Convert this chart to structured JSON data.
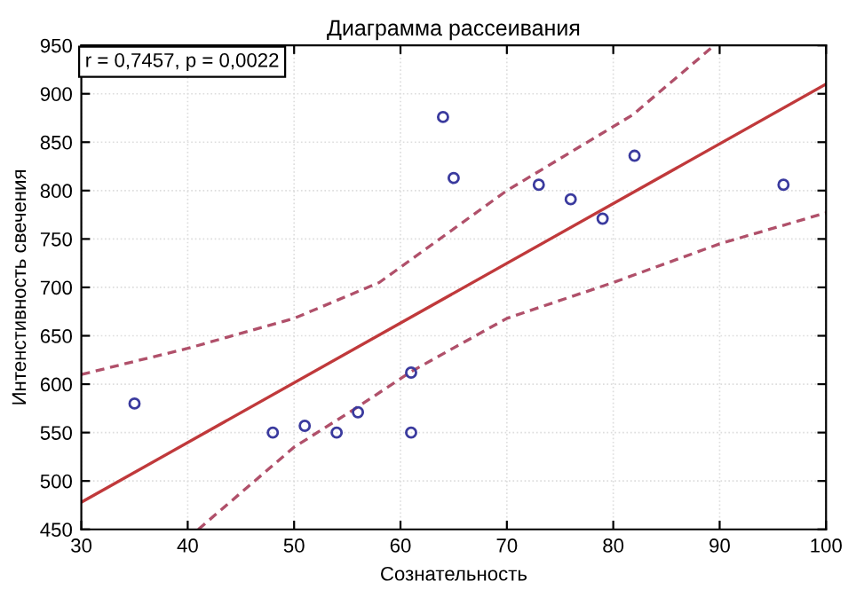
{
  "chart_data": {
    "type": "scatter",
    "title": "Диаграмма рассеивания",
    "xlabel": "Сознательность",
    "ylabel": "Интенстивность свечения",
    "annotations": [
      "r = 0,7457, p = 0,0022"
    ],
    "series": [
      {
        "color": "#3a3a9e",
        "marker": "circle",
        "x": [
          35,
          48,
          51,
          54,
          56,
          61,
          61,
          64,
          65,
          73,
          76,
          79,
          82,
          96
        ],
        "values": [
          580,
          550,
          557,
          550,
          571,
          612,
          550,
          876,
          813,
          806,
          791,
          771,
          836,
          806
        ]
      },
      {
        "type": "line",
        "color": "#c0393b",
        "line_style": "solid",
        "x": [
          30,
          100
        ],
        "values": [
          478,
          910
        ]
      },
      {
        "type": "line",
        "color": "#b0506a",
        "line_style": "dashed",
        "x": [
          30,
          40,
          50,
          58,
          70,
          81.8,
          89.5
        ],
        "values": [
          610,
          637,
          668,
          705,
          800,
          878,
          950
        ]
      },
      {
        "type": "line",
        "color": "#b0506a",
        "line_style": "dashed",
        "x": [
          41,
          50,
          55.5,
          61,
          70,
          80,
          90,
          100
        ],
        "values": [
          450,
          535,
          573,
          613,
          668,
          705,
          745,
          777
        ]
      }
    ],
    "xlim": [
      30,
      100
    ],
    "ylim": [
      450,
      950
    ],
    "xticks": [
      30,
      40,
      50,
      60,
      70,
      80,
      90,
      100
    ],
    "yticks": [
      450,
      500,
      550,
      600,
      650,
      700,
      750,
      800,
      850,
      900,
      950
    ],
    "grid": true
  }
}
